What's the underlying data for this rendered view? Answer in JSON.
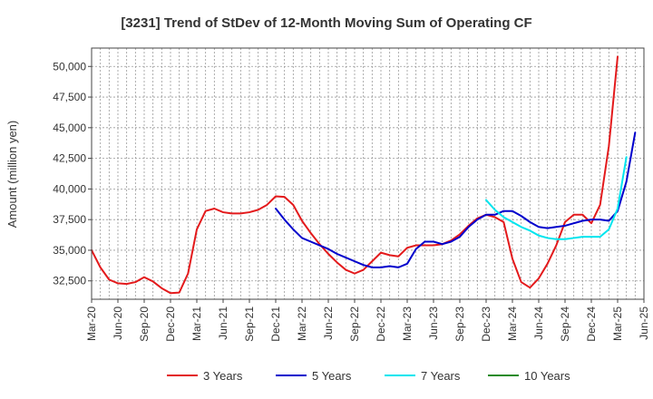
{
  "chart_data": {
    "type": "line",
    "title": "[3231]  Trend of StDev of 12-Month Moving Sum of Operating CF",
    "xlabel": "",
    "ylabel": "Amount (million yen)",
    "ylim": [
      31000,
      51500
    ],
    "yticks": [
      32500,
      35000,
      37500,
      40000,
      42500,
      45000,
      47500,
      50000
    ],
    "ytick_labels": [
      "32,500",
      "35,000",
      "37,500",
      "40,000",
      "42,500",
      "45,000",
      "47,500",
      "50,000"
    ],
    "xticks": [
      "Mar-20",
      "Jun-20",
      "Sep-20",
      "Dec-20",
      "Mar-21",
      "Jun-21",
      "Sep-21",
      "Dec-21",
      "Mar-22",
      "Jun-22",
      "Sep-22",
      "Dec-22",
      "Mar-23",
      "Jun-23",
      "Sep-23",
      "Dec-23",
      "Mar-24",
      "Jun-24",
      "Sep-24",
      "Dec-24",
      "Mar-25",
      "Jun-25"
    ],
    "x_start": "Mar-20",
    "grid": true,
    "legend_position": "bottom",
    "series": [
      {
        "name": "3 Years",
        "color": "#e31a1c",
        "start_index": 0,
        "values": [
          35000,
          33600,
          32600,
          32300,
          32250,
          32400,
          32800,
          32450,
          31900,
          31500,
          31550,
          33100,
          36700,
          38200,
          38400,
          38100,
          38000,
          38000,
          38100,
          38300,
          38700,
          39400,
          39350,
          38700,
          37400,
          36400,
          35500,
          34700,
          34000,
          33400,
          33100,
          33400,
          34100,
          34800,
          34600,
          34500,
          35200,
          35400,
          35400,
          35400,
          35500,
          35800,
          36300,
          37000,
          37600,
          37900,
          37700,
          37300,
          34300,
          32400,
          31950,
          32700,
          33900,
          35400,
          37300,
          37900,
          37900,
          37200,
          38700,
          43500,
          50800
        ]
      },
      {
        "name": "5 Years",
        "color": "#0000cc",
        "start_index": 21,
        "values": [
          38400,
          37500,
          36700,
          36000,
          35700,
          35400,
          35100,
          34700,
          34400,
          34100,
          33800,
          33600,
          33600,
          33700,
          33600,
          33900,
          35100,
          35700,
          35700,
          35500,
          35700,
          36100,
          36900,
          37500,
          37900,
          37900,
          38200,
          38200,
          37800,
          37300,
          36900,
          36800,
          36900,
          37000,
          37200,
          37400,
          37500,
          37500,
          37400,
          38200,
          40600,
          44600
        ]
      },
      {
        "name": "7 Years",
        "color": "#00e5ee",
        "start_index": 45,
        "values": [
          39100,
          38300,
          37700,
          37300,
          36900,
          36600,
          36200,
          36000,
          35900,
          35900,
          36000,
          36100,
          36100,
          36100,
          36700,
          38400,
          42600
        ]
      },
      {
        "name": "10 Years",
        "color": "#228b22",
        "start_index": 0,
        "values": []
      }
    ]
  }
}
